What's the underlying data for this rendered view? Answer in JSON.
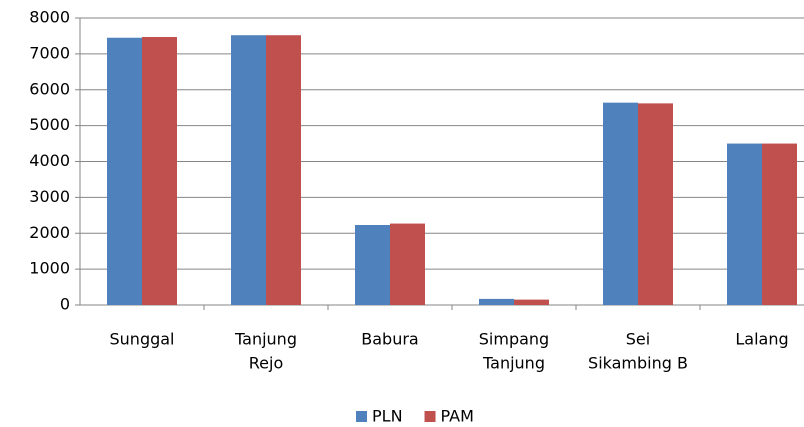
{
  "chart_data": {
    "type": "bar",
    "categories": [
      [
        "Sunggal"
      ],
      [
        "Tanjung",
        "Rejo"
      ],
      [
        "Babura"
      ],
      [
        "Simpang",
        "Tanjung"
      ],
      [
        "Sei",
        "Sikambing B"
      ],
      [
        "Lalang"
      ]
    ],
    "series": [
      {
        "name": "PLN",
        "color": "#4f81bd",
        "values": [
          7450,
          7520,
          2230,
          170,
          5640,
          4500
        ]
      },
      {
        "name": "PAM",
        "color": "#c0504d",
        "values": [
          7470,
          7520,
          2270,
          150,
          5620,
          4500
        ]
      }
    ],
    "ylim": [
      0,
      8000
    ],
    "yticks": [
      0,
      1000,
      2000,
      3000,
      4000,
      5000,
      6000,
      7000,
      8000
    ],
    "grid": true,
    "legend": "bottom"
  }
}
